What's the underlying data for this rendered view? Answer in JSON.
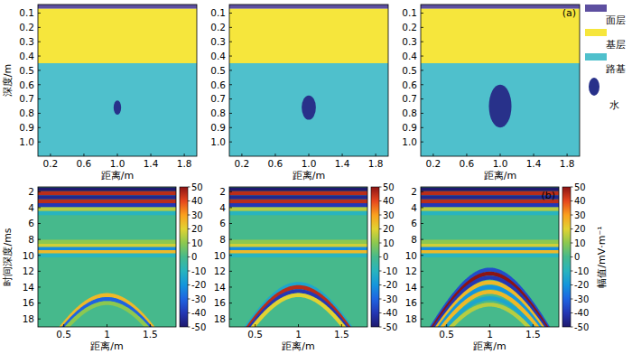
{
  "chart_data": [
    {
      "type": "model",
      "xlabel": "距离/m",
      "ylabel": "深度/m",
      "xlim": [
        0.05,
        1.95
      ],
      "xticks": [
        0.2,
        0.6,
        {
          "value": 1,
          "label": "1.0"
        },
        1.4,
        1.8
      ],
      "ylim": [
        0.04,
        1.1
      ],
      "yticks": [
        0.1,
        0.2,
        0.3,
        0.4,
        0.5,
        0.6,
        0.7,
        0.8,
        0.9,
        {
          "value": 1,
          "label": "1.0"
        }
      ],
      "layers": [
        {
          "top": 0.04,
          "bottom": 0.07
        },
        {
          "top": 0.07,
          "bottom": 0.45
        },
        {
          "top": 0.45,
          "bottom": 1.1
        }
      ],
      "water": {
        "cx": 1.0,
        "cy": 0.76,
        "rx": 0.045,
        "ry": 0.05
      }
    },
    {
      "type": "model",
      "xlabel": "距离/m",
      "xlim": [
        0.05,
        1.95
      ],
      "xticks": [
        0.2,
        0.6,
        {
          "value": 1,
          "label": "1.0"
        },
        1.4,
        1.8
      ],
      "ylim": [
        0.04,
        1.1
      ],
      "yticks": [
        0.1,
        0.2,
        0.3,
        0.4,
        0.5,
        0.6,
        0.7,
        0.8,
        0.9,
        {
          "value": 1,
          "label": "1.0"
        }
      ],
      "layers": [
        {
          "top": 0.04,
          "bottom": 0.07
        },
        {
          "top": 0.07,
          "bottom": 0.45
        },
        {
          "top": 0.45,
          "bottom": 1.1
        }
      ],
      "water": {
        "cx": 1.0,
        "cy": 0.76,
        "rx": 0.085,
        "ry": 0.085
      }
    },
    {
      "type": "model",
      "xlabel": "距离/m",
      "panel_label": "(a)",
      "xlim": [
        0.05,
        1.95
      ],
      "xticks": [
        0.2,
        0.6,
        {
          "value": 1,
          "label": "1.0"
        },
        1.4,
        1.8
      ],
      "ylim": [
        0.04,
        1.1
      ],
      "yticks": [
        0.1,
        0.2,
        0.3,
        0.4,
        0.5,
        0.6,
        0.7,
        0.8,
        0.9,
        {
          "value": 1,
          "label": "1.0"
        }
      ],
      "layers": [
        {
          "top": 0.04,
          "bottom": 0.07
        },
        {
          "top": 0.07,
          "bottom": 0.45
        },
        {
          "top": 0.45,
          "bottom": 1.1
        }
      ],
      "water": {
        "cx": 1.0,
        "cy": 0.75,
        "rx": 0.135,
        "ry": 0.15
      }
    },
    {
      "type": "radargram",
      "xlabel": "距离/m",
      "ylabel": "时间深度/ms",
      "xlim": [
        0.2,
        1.8
      ],
      "xticks": [
        0.5,
        1,
        1.5
      ],
      "ylim": [
        1.4,
        19
      ],
      "yticks": [
        2,
        4,
        6,
        8,
        10,
        12,
        14,
        16,
        18
      ],
      "colorbar": {
        "range": [
          -50,
          50
        ],
        "ticks": [
          -50,
          -40,
          -30,
          -20,
          -10,
          0,
          10,
          20,
          30,
          40,
          50
        ]
      },
      "reflections": [
        {
          "time": 1.7,
          "value": -50
        },
        {
          "time": 2.2,
          "value": 45
        },
        {
          "time": 2.7,
          "value": -45
        },
        {
          "time": 3.2,
          "value": 45
        },
        {
          "time": 3.7,
          "value": -40
        },
        {
          "time": 4.2,
          "value": 15
        },
        {
          "time": 4.7,
          "value": -10
        },
        {
          "time": 8.3,
          "value": 10
        },
        {
          "time": 8.8,
          "value": 18
        },
        {
          "time": 9.2,
          "value": -22
        },
        {
          "time": 9.6,
          "value": 25
        },
        {
          "time": 10.0,
          "value": -10
        }
      ],
      "diffraction": {
        "apex_x": 1.0,
        "velocity": 0.09,
        "wavelets": [
          {
            "time": 15.0,
            "value": 25
          },
          {
            "time": 15.5,
            "value": -30
          },
          {
            "time": 16.0,
            "value": 10
          }
        ]
      }
    },
    {
      "type": "radargram",
      "xlabel": "距离/m",
      "xlim": [
        0.2,
        1.8
      ],
      "xticks": [
        0.5,
        1,
        1.5
      ],
      "ylim": [
        1.4,
        19
      ],
      "yticks": [
        2,
        4,
        6,
        8,
        10,
        12,
        14,
        16,
        18
      ],
      "colorbar": {
        "range": [
          -50,
          50
        ],
        "ticks": [
          -50,
          -40,
          -30,
          -20,
          -10,
          0,
          10,
          20,
          30,
          40,
          50
        ]
      },
      "reflections": [
        {
          "time": 1.7,
          "value": -50
        },
        {
          "time": 2.2,
          "value": 45
        },
        {
          "time": 2.7,
          "value": -45
        },
        {
          "time": 3.2,
          "value": 45
        },
        {
          "time": 3.7,
          "value": -40
        },
        {
          "time": 4.2,
          "value": 15
        },
        {
          "time": 4.7,
          "value": -10
        },
        {
          "time": 8.3,
          "value": 10
        },
        {
          "time": 8.8,
          "value": 18
        },
        {
          "time": 9.2,
          "value": -22
        },
        {
          "time": 9.6,
          "value": 25
        },
        {
          "time": 10.0,
          "value": -10
        }
      ],
      "diffraction": {
        "apex_x": 1.0,
        "velocity": 0.09,
        "wavelets": [
          {
            "time": 13.6,
            "value": -15
          },
          {
            "time": 14.0,
            "value": 45
          },
          {
            "time": 14.5,
            "value": -40
          },
          {
            "time": 15.0,
            "value": 20
          }
        ]
      }
    },
    {
      "type": "radargram",
      "xlabel": "距离/m",
      "panel_label": "(b)",
      "xlim": [
        0.2,
        1.8
      ],
      "xticks": [
        0.5,
        1,
        1.5
      ],
      "ylim": [
        1.4,
        19
      ],
      "yticks": [
        2,
        4,
        6,
        8,
        10,
        12,
        14,
        16,
        18
      ],
      "colorbar": {
        "range": [
          -50,
          50
        ],
        "ticks": [
          -50,
          -40,
          -30,
          -20,
          -10,
          0,
          10,
          20,
          30,
          40,
          50
        ],
        "label": "幅值/mV·m⁻¹"
      },
      "reflections": [
        {
          "time": 1.7,
          "value": -50
        },
        {
          "time": 2.2,
          "value": 45
        },
        {
          "time": 2.7,
          "value": -45
        },
        {
          "time": 3.2,
          "value": 45
        },
        {
          "time": 3.7,
          "value": -40
        },
        {
          "time": 4.2,
          "value": 15
        },
        {
          "time": 4.7,
          "value": -10
        },
        {
          "time": 8.3,
          "value": 10
        },
        {
          "time": 8.8,
          "value": 18
        },
        {
          "time": 9.2,
          "value": -22
        },
        {
          "time": 9.6,
          "value": 25
        },
        {
          "time": 10.0,
          "value": -10
        }
      ],
      "diffraction": {
        "apex_x": 1.0,
        "velocity": 0.09,
        "wavelets": [
          {
            "time": 11.8,
            "value": -35
          },
          {
            "time": 12.3,
            "value": 50
          },
          {
            "time": 12.8,
            "value": -40
          },
          {
            "time": 13.4,
            "value": 25
          },
          {
            "time": 14.0,
            "value": -20
          },
          {
            "time": 14.6,
            "value": 25
          },
          {
            "time": 15.4,
            "value": -15
          },
          {
            "time": 16.2,
            "value": 15
          }
        ]
      }
    }
  ],
  "legend": {
    "items": [
      {
        "name": "面层",
        "color": "#5d4fa0",
        "marker": "rect"
      },
      {
        "name": "基层",
        "color": "#f6e63c",
        "marker": "rect"
      },
      {
        "name": "路基",
        "color": "#4fc0cc",
        "marker": "rect"
      },
      {
        "name": "水",
        "color": "#28318a",
        "marker": "ellipse"
      }
    ]
  }
}
